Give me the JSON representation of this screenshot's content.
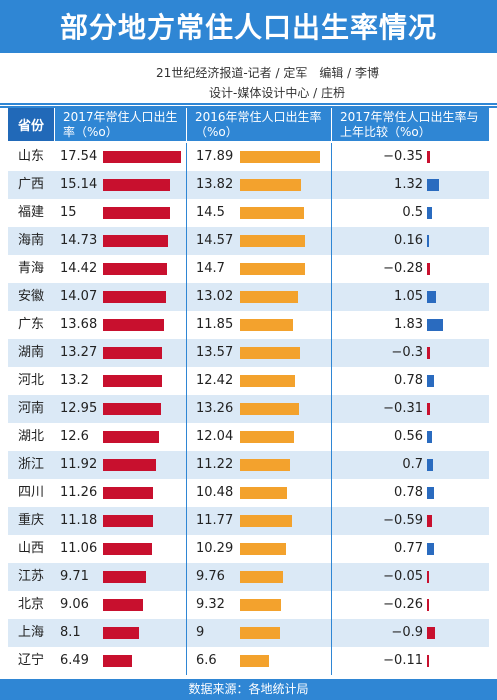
{
  "title": "部分地方常住人口出生率情况",
  "credits": {
    "line1": "21世纪经济报道-记者 / 定军　编辑 / 李博",
    "line2": "设计-媒体设计中心 / 庄枬"
  },
  "headers": {
    "province": "省份",
    "col1": "2017年常住人口出生率（%o）",
    "col2": "2016年常住人口出生率（%o）",
    "col3": "2017年常住人口出生率与上年比较（%o）"
  },
  "footer": "数据来源：各地统计局",
  "colors": {
    "banner": "#2f86d4",
    "bar2017": "#c8102e",
    "bar2016": "#f3a22d",
    "diff_positive": "#2a6bbf",
    "diff_negative": "#c8102e",
    "alt_row": "#dbe9f6"
  },
  "chart_data": {
    "type": "table",
    "title": "部分地方常住人口出生率情况",
    "columns": [
      "省份",
      "2017年常住人口出生率（%o）",
      "2016年常住人口出生率（%o）",
      "2017年常住人口出生率与上年比较（%o）"
    ],
    "categories": [
      "山东",
      "广西",
      "福建",
      "海南",
      "青海",
      "安徽",
      "广东",
      "湖南",
      "河北",
      "河南",
      "湖北",
      "浙江",
      "四川",
      "重庆",
      "山西",
      "江苏",
      "北京",
      "上海",
      "辽宁"
    ],
    "series": [
      {
        "name": "2017年常住人口出生率（%o）",
        "values": [
          17.54,
          15.14,
          15,
          14.73,
          14.42,
          14.07,
          13.68,
          13.27,
          13.2,
          12.95,
          12.6,
          11.92,
          11.26,
          11.18,
          11.06,
          9.71,
          9.06,
          8.1,
          6.49
        ]
      },
      {
        "name": "2016年常住人口出生率（%o）",
        "values": [
          17.89,
          13.82,
          14.5,
          14.57,
          14.7,
          13.02,
          11.85,
          13.57,
          12.42,
          13.26,
          12.04,
          11.22,
          10.48,
          11.77,
          10.29,
          9.76,
          9.32,
          9,
          6.6
        ]
      },
      {
        "name": "2017年常住人口出生率与上年比较（%o）",
        "values": [
          -0.35,
          1.32,
          0.5,
          0.16,
          -0.28,
          1.05,
          1.83,
          -0.3,
          0.78,
          -0.31,
          0.56,
          0.7,
          0.78,
          -0.59,
          0.77,
          -0.05,
          -0.26,
          -0.9,
          -0.11
        ]
      }
    ],
    "labels": {
      "col1": [
        "17.54",
        "15.14",
        "15",
        "14.73",
        "14.42",
        "14.07",
        "13.68",
        "13.27",
        "13.2",
        "12.95",
        "12.6",
        "11.92",
        "11.26",
        "11.18",
        "11.06",
        "9.71",
        "9.06",
        "8.1",
        "6.49"
      ],
      "col2": [
        "17.89",
        "13.82",
        "14.5",
        "14.57",
        "14.7",
        "13.02",
        "11.85",
        "13.57",
        "12.42",
        "13.26",
        "12.04",
        "11.22",
        "10.48",
        "11.77",
        "10.29",
        "9.76",
        "9.32",
        "9",
        "6.6"
      ],
      "col3": [
        "−0.35",
        "1.32",
        "0.5",
        "0.16",
        "−0.28",
        "1.05",
        "1.83",
        "−0.3",
        "0.78",
        "−0.31",
        "0.56",
        "0.7",
        "0.78",
        "−0.59",
        "0.77",
        "−0.05",
        "−0.26",
        "−0.9",
        "−0.11"
      ]
    }
  }
}
